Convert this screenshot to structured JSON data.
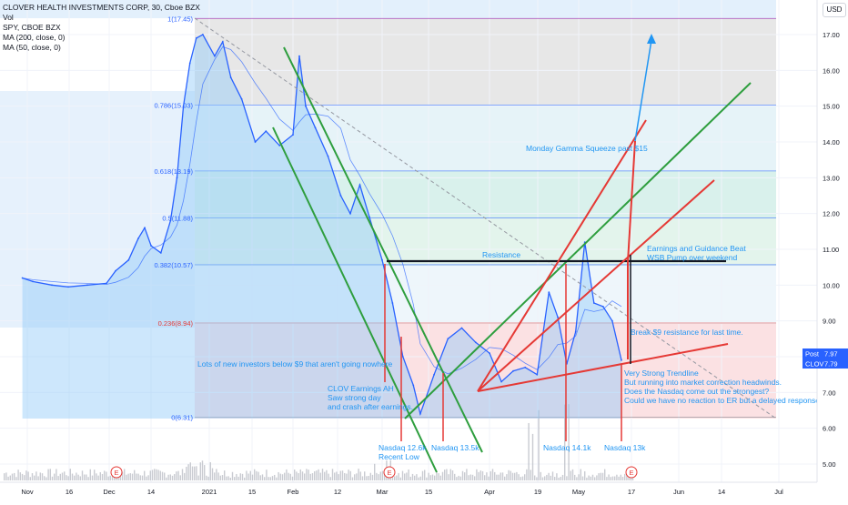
{
  "header": {
    "symbol_line": "CLOVER HEALTH INVESTMENTS CORP, 30, Cboe BZX",
    "vol_line": "Vol",
    "spy_line": "SPY, CBOE BZX",
    "ma200_line": "MA (200, close, 0)",
    "ma50_line": "MA (50, close, 0)",
    "currency_badge": "USD"
  },
  "colors": {
    "price_line": "#2962ff",
    "ma_line": "#2962ff",
    "green_line": "#2e9e3e",
    "red_line": "#e53935",
    "black_line": "#131722",
    "annotation_text": "#2196f3",
    "fib_red_text": "#e53935",
    "volume_bar": "#b2b5be"
  },
  "chart_data": {
    "type": "line",
    "title": "CLOVER HEALTH INVESTMENTS CORP, 30, Cboe BZX",
    "xlabel": "",
    "ylabel": "",
    "ylim": [
      5.0,
      17.7
    ],
    "x_ticks": [
      "Nov",
      "16",
      "Dec",
      "14",
      "2021",
      "15",
      "Feb",
      "12",
      "Mar",
      "15",
      "Apr",
      "19",
      "May",
      "17",
      "Jun",
      "14",
      "Jul"
    ],
    "y_ticks": [
      "17.00",
      "16.00",
      "15.00",
      "14.00",
      "13.00",
      "12.00",
      "11.00",
      "10.00",
      "9.00",
      "8.00",
      "7.00",
      "6.00",
      "5.00"
    ],
    "fib_levels": [
      {
        "label": "1(17.45)",
        "value": 17.45
      },
      {
        "label": "0.786(15.03)",
        "value": 15.03
      },
      {
        "label": "0.618(13.19)",
        "value": 13.19
      },
      {
        "label": "0.5(11.88)",
        "value": 11.88
      },
      {
        "label": "0.382(10.57)",
        "value": 10.57
      },
      {
        "label": "0.236(8.94)",
        "value": 8.94
      },
      {
        "label": "0(6.31)",
        "value": 6.31
      }
    ],
    "series": [
      {
        "name": "CLOV",
        "points": [
          [
            "Oct 28",
            10.2
          ],
          [
            "Nov 3",
            10.1
          ],
          [
            "Nov 10",
            10.0
          ],
          [
            "Nov 16",
            9.95
          ],
          [
            "Nov 23",
            10.0
          ],
          [
            "Nov 30",
            10.05
          ],
          [
            "Dec 3",
            10.4
          ],
          [
            "Dec 7",
            10.7
          ],
          [
            "Dec 10",
            11.3
          ],
          [
            "Dec 12",
            11.6
          ],
          [
            "Dec 14",
            11.1
          ],
          [
            "Dec 17",
            10.9
          ],
          [
            "Dec 20",
            11.8
          ],
          [
            "Dec 22",
            13.0
          ],
          [
            "Dec 24",
            15.0
          ],
          [
            "Dec 26",
            16.2
          ],
          [
            "Dec 28",
            16.9
          ],
          [
            "Dec 30",
            17.0
          ],
          [
            "Jan 3",
            16.4
          ],
          [
            "Jan 6",
            16.8
          ],
          [
            "Jan 9",
            15.8
          ],
          [
            "Jan 13",
            15.2
          ],
          [
            "Jan 18",
            14.0
          ],
          [
            "Jan 22",
            14.3
          ],
          [
            "Jan 27",
            13.9
          ],
          [
            "Feb 1",
            14.2
          ],
          [
            "Feb 3",
            16.4
          ],
          [
            "Feb 5",
            15.0
          ],
          [
            "Feb 8",
            14.4
          ],
          [
            "Feb 12",
            13.6
          ],
          [
            "Feb 16",
            12.5
          ],
          [
            "Feb 19",
            12.0
          ],
          [
            "Feb 22",
            12.8
          ],
          [
            "Feb 25",
            11.9
          ],
          [
            "Mar 1",
            10.7
          ],
          [
            "Mar 4",
            9.5
          ],
          [
            "Mar 7",
            8.0
          ],
          [
            "Mar 10",
            7.2
          ],
          [
            "Mar 12",
            6.4
          ],
          [
            "Mar 16",
            7.5
          ],
          [
            "Mar 20",
            8.5
          ],
          [
            "Mar 24",
            8.8
          ],
          [
            "Mar 28",
            8.4
          ],
          [
            "Apr 1",
            8.1
          ],
          [
            "Apr 5",
            7.3
          ],
          [
            "Apr 9",
            7.6
          ],
          [
            "Apr 13",
            7.7
          ],
          [
            "Apr 17",
            7.5
          ],
          [
            "Apr 21",
            9.8
          ],
          [
            "Apr 24",
            9.1
          ],
          [
            "Apr 27",
            7.8
          ],
          [
            "Apr 30",
            8.7
          ],
          [
            "May 3",
            11.2
          ],
          [
            "May 6",
            9.5
          ],
          [
            "May 9",
            9.4
          ],
          [
            "May 12",
            9.0
          ],
          [
            "May 15",
            7.9
          ]
        ]
      }
    ],
    "price_badges": [
      {
        "name": "Post",
        "value": "7.97",
        "color": "#2962ff"
      },
      {
        "name": "CLOV",
        "value": "7.79",
        "color": "#2962ff"
      }
    ]
  },
  "annotations": {
    "resistance": "Resistance",
    "gamma_squeeze": "Monday Gamma Squeeze past $15",
    "earnings_beat_1": "Earnings and Guidance Beat",
    "earnings_beat_2": "WSB Pump over weekend",
    "break_resistance": "Break $9 resistance for last time.",
    "new_investors": "Lots of new investors below $9 that aren't going nowhere",
    "clov_earnings_1": "CLOV Earnings AH",
    "clov_earnings_2": "Saw strong day",
    "clov_earnings_3": "and crash after earnings.",
    "trendline_1": "Very Strong Trendline",
    "trendline_2": "But running into market correction headwinds.",
    "trendline_3": "Does the Nasdaq come out the strongest?",
    "trendline_4": "Could we have no reaction to ER but a delayed response boom?",
    "nasdaq_1a": "Nasdaq 12.6k",
    "nasdaq_1b": "Recent Low",
    "nasdaq_2": "Nasdaq 13.5k",
    "nasdaq_3": "Nasdaq 14.1k",
    "nasdaq_4": "Nasdaq 13k",
    "earnings_marker": "E"
  }
}
